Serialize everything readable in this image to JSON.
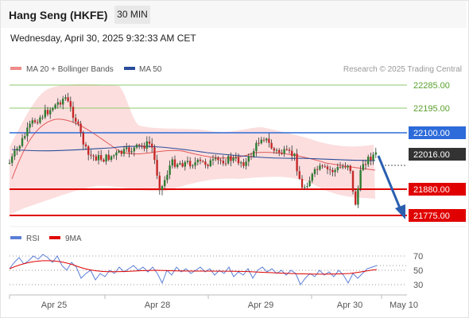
{
  "header": {
    "title": "Hang Seng (HKFE)",
    "timeframe": "30 MIN"
  },
  "date_line": "Wednesday, April 30, 2025 9:32:33 AM CET",
  "legend": {
    "ma20": "MA 20 + Bollinger Bands",
    "ma50": "MA 50",
    "rsi": "RSI",
    "ma9": "9MA"
  },
  "credit": "Research © 2025 Trading Central",
  "colors": {
    "resistance": "#2c6bd9",
    "support": "#e00000",
    "target_green": "#7fbf3f",
    "candle_up": "#2e7d32",
    "candle_down": "#c62828",
    "bands": "#fbd3d3",
    "ma50": "#2a4d9b",
    "rsi": "#5b7fd6"
  },
  "levels": [
    {
      "label": "22285.00",
      "kind": "green"
    },
    {
      "label": "22195.00",
      "kind": "green"
    },
    {
      "label": "22100.00",
      "kind": "blue"
    },
    {
      "label": "22016.00",
      "kind": "current"
    },
    {
      "label": "21880.00",
      "kind": "red"
    },
    {
      "label": "21775.00",
      "kind": "red"
    }
  ],
  "rsi_levels": [
    "70",
    "50",
    "30"
  ],
  "x_axis": [
    "Apr 25",
    "Apr 28",
    "Apr 29",
    "Apr 30",
    "May 10"
  ]
}
